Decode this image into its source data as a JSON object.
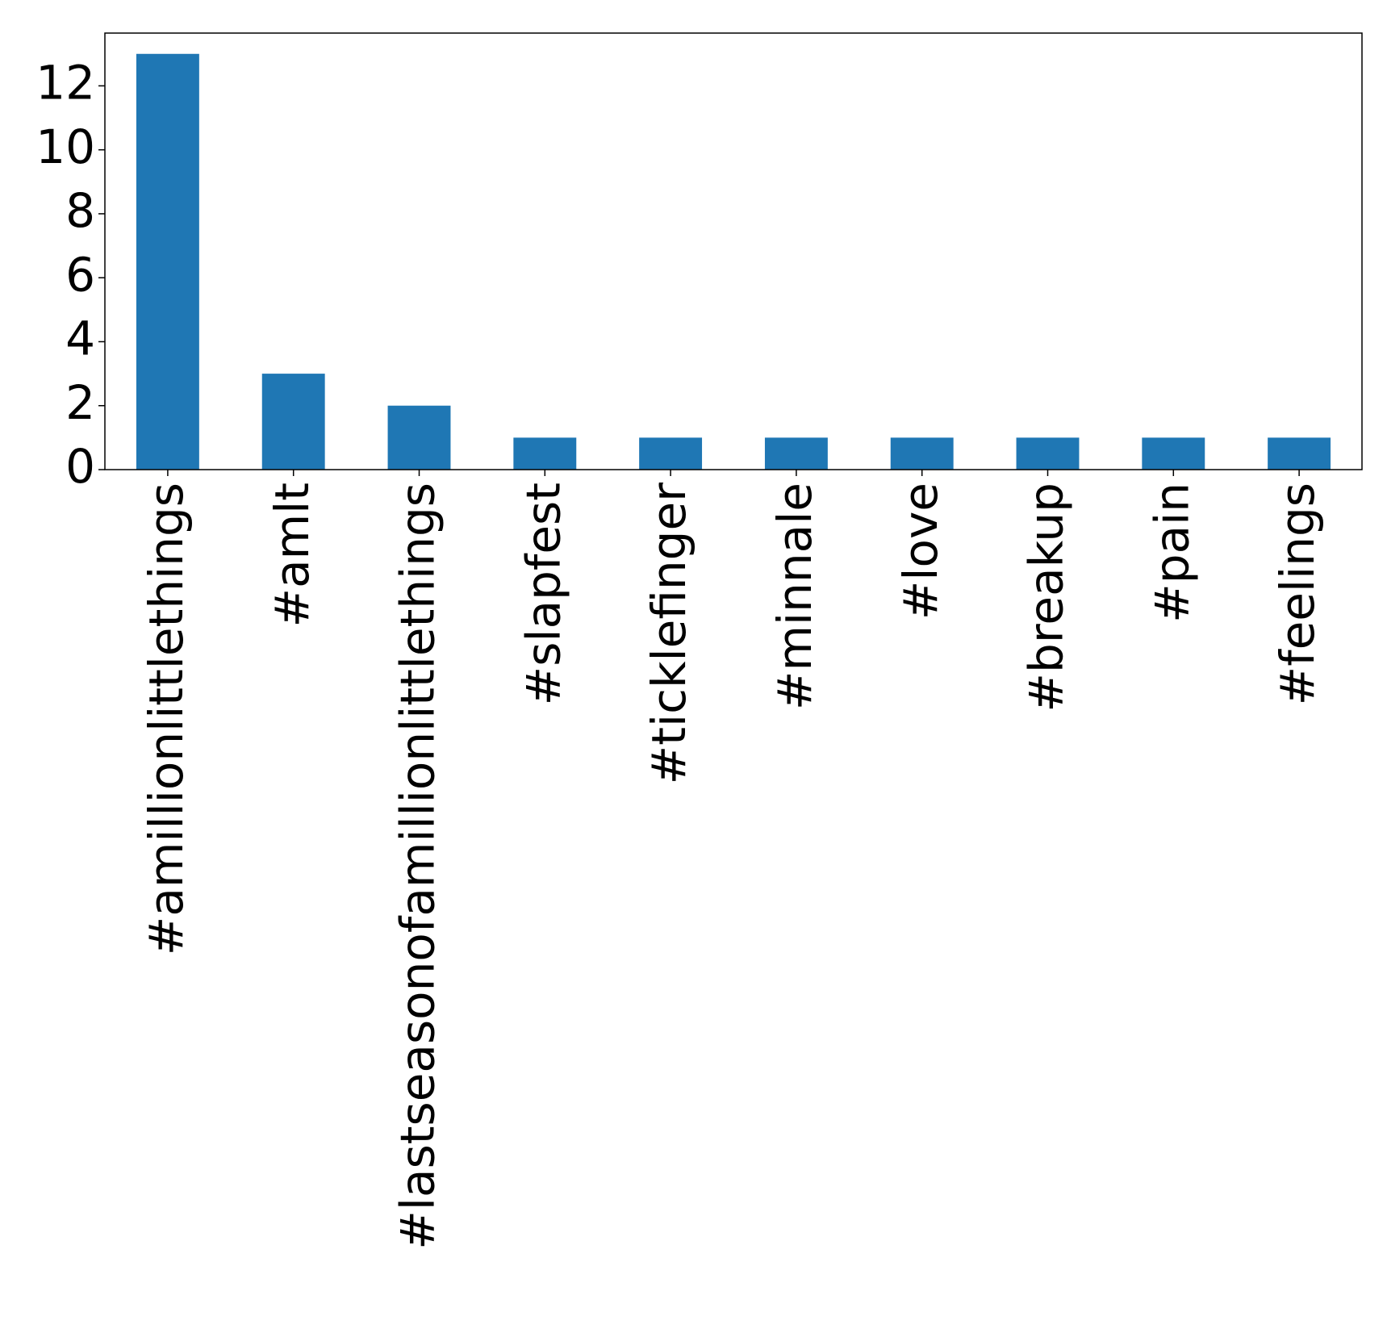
{
  "chart_data": {
    "type": "bar",
    "categories": [
      "#amillionlittlethings",
      "#amlt",
      "#lastseasonofamillionlittlethings",
      "#slapfest",
      "#ticklefinger",
      "#minnale",
      "#love",
      "#breakup",
      "#pain",
      "#feelings"
    ],
    "values": [
      13,
      3,
      2,
      1,
      1,
      1,
      1,
      1,
      1,
      1
    ],
    "title": "",
    "xlabel": "",
    "ylabel": "",
    "ylim": [
      0,
      13.65
    ],
    "yticks": [
      "0",
      "2",
      "4",
      "6",
      "8",
      "10",
      "12"
    ],
    "bar_color": "#1f77b4",
    "grid": false,
    "x_tick_rotation": "vertical"
  }
}
